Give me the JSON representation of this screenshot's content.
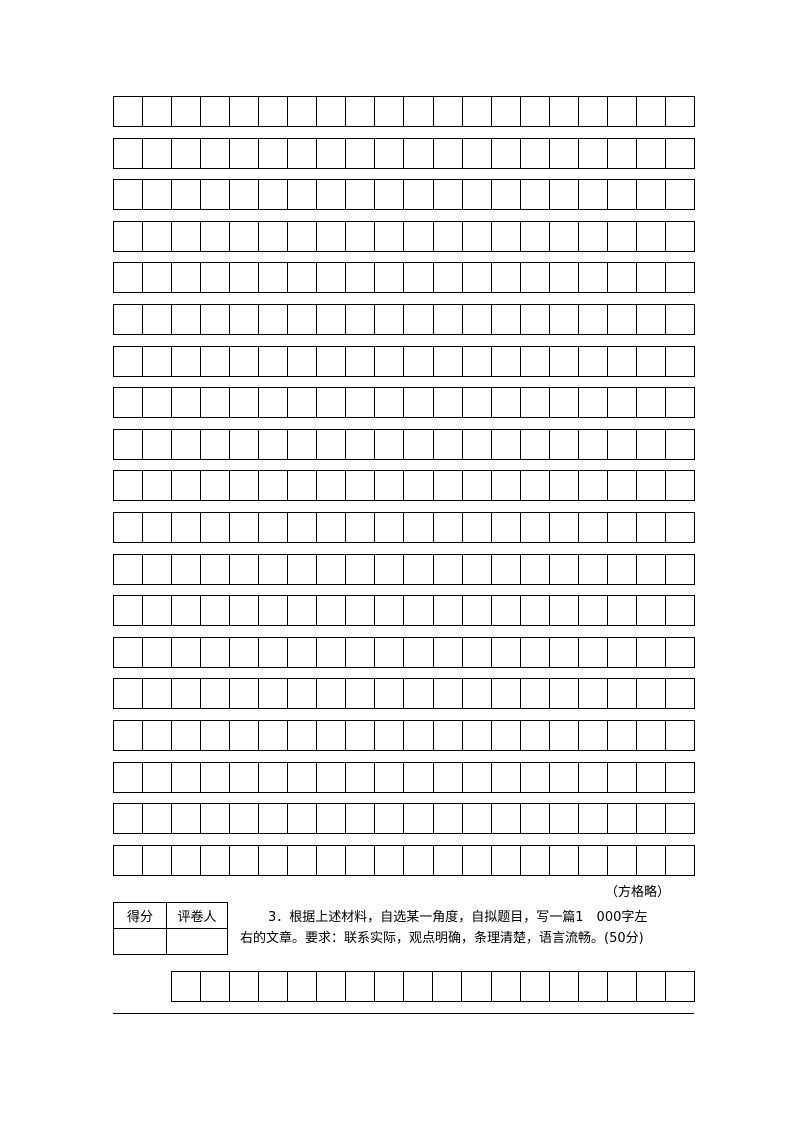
{
  "note": "（方格略）",
  "score_table": {
    "score_header": "得分",
    "grader_header": "评卷人",
    "score_value": "",
    "grader_value": ""
  },
  "question3": {
    "line1": "3．根据上述材料，自选某一角度，自拟题目，写一篇1　000字左",
    "line2": "右的文章。要求：联系实际，观点明确，条理清楚，语言流畅。(50分)"
  }
}
